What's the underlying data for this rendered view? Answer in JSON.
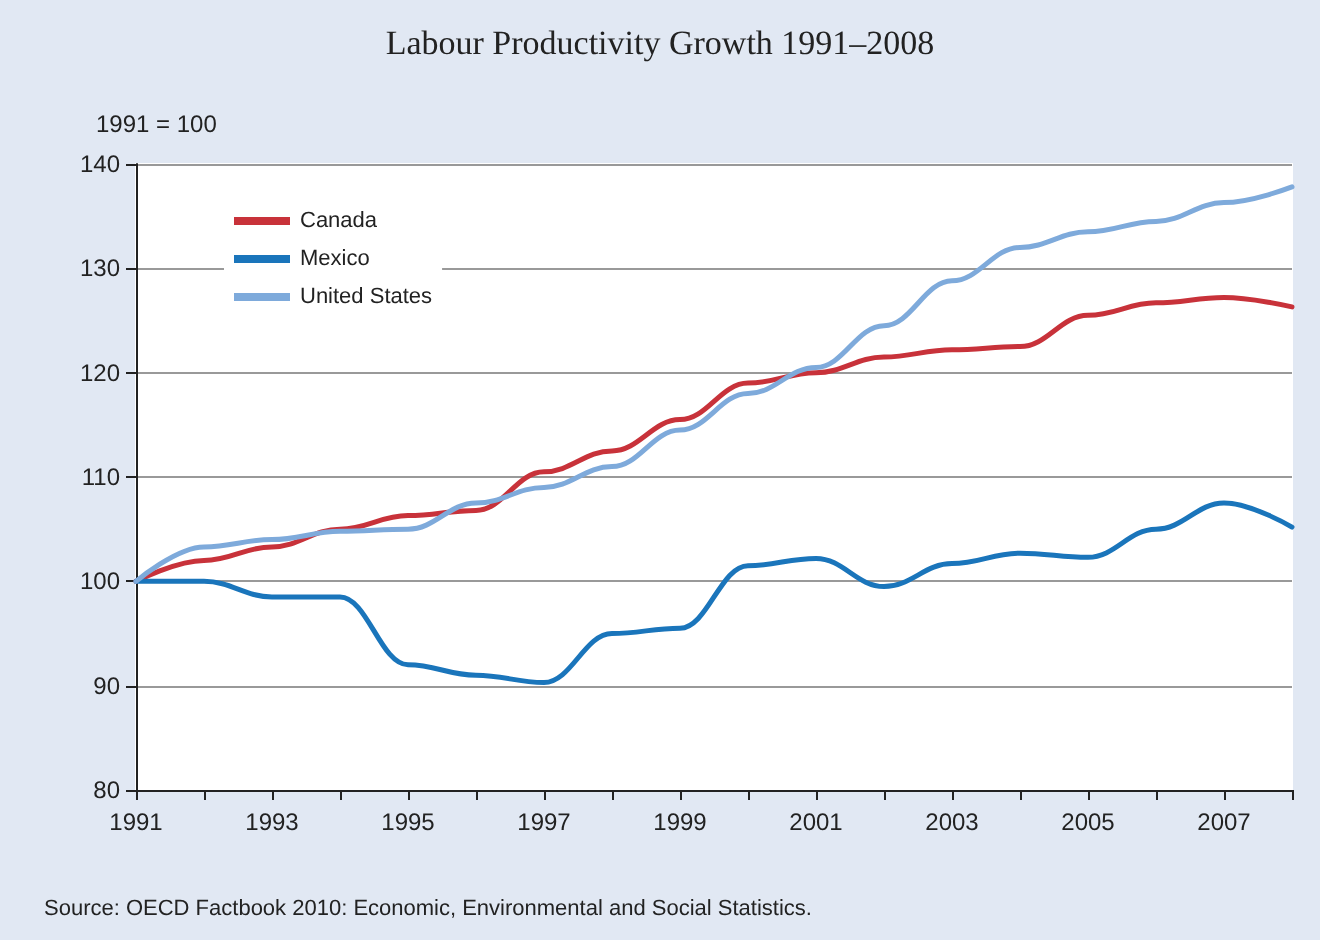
{
  "chart_data": {
    "type": "line",
    "title": "Labour Productivity Growth 1991–2008",
    "ylabel": "1991 = 100",
    "categories": [
      "1991",
      null,
      "1993",
      null,
      "1995",
      null,
      "1997",
      null,
      "1999",
      null,
      "2001",
      null,
      "2003",
      null,
      "2005",
      null,
      "2007",
      null
    ],
    "series": [
      {
        "name": "Canada",
        "color": "#c8323a",
        "values": [
          100,
          102,
          103.3,
          105,
          106.3,
          106.8,
          110.5,
          112.5,
          115.5,
          119,
          120,
          121.5,
          122.2,
          122.5,
          125.5,
          126.7,
          127.2,
          126.3
        ]
      },
      {
        "name": "Mexico",
        "color": "#1a75bb",
        "values": [
          100,
          100,
          98.5,
          98.5,
          92,
          91,
          90.3,
          95,
          95.5,
          101.5,
          102.2,
          99.5,
          101.7,
          102.7,
          102.3,
          105,
          107.5,
          105.2
        ]
      },
      {
        "name": "United States",
        "color": "#7eaadb",
        "values": [
          100,
          103.3,
          104,
          104.8,
          105,
          107.5,
          109,
          111,
          114.5,
          118,
          120.5,
          124.5,
          128.8,
          132,
          133.5,
          134.5,
          136.3,
          137.8
        ]
      }
    ],
    "ylim": [
      80,
      140
    ],
    "yticks": [
      80,
      90,
      100,
      110,
      120,
      130,
      140
    ],
    "grid": "y",
    "legend": "top left",
    "marker": "none",
    "line_style": "solid",
    "annotations": [
      "Source: OECD Factbook 2010: Economic, Environmental and Social Statistics."
    ]
  }
}
